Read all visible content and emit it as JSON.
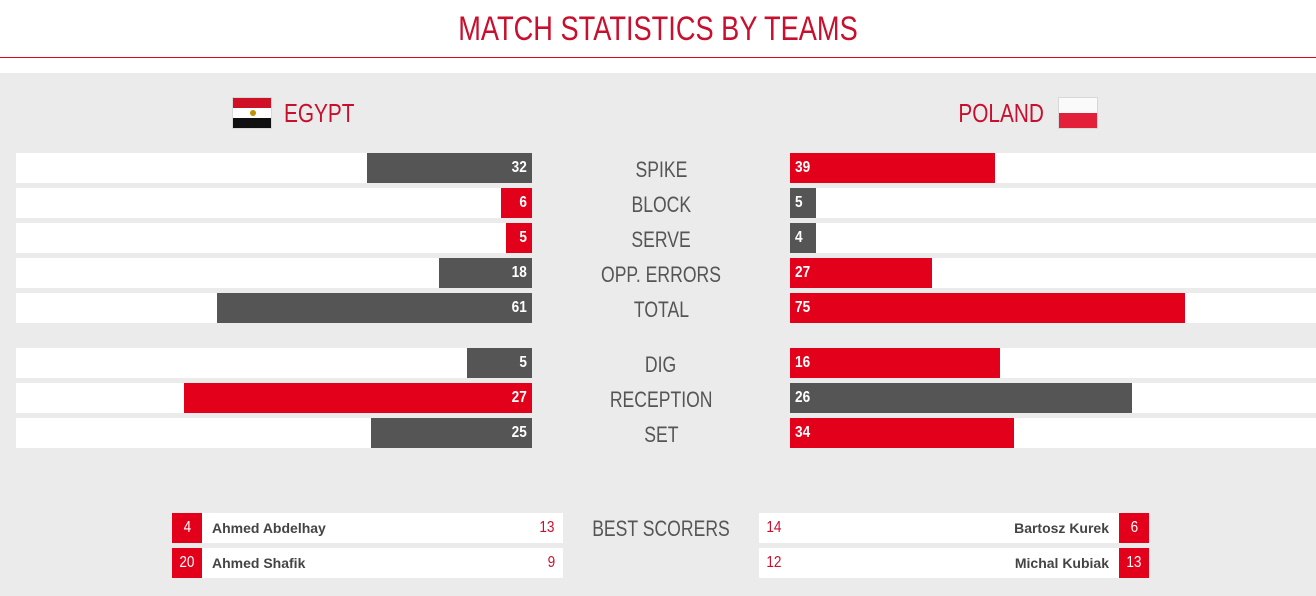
{
  "page": {
    "title": "MATCH STATISTICS BY TEAMS"
  },
  "teams": {
    "home": {
      "name": "EGYPT",
      "flag_icon": "egypt-flag-icon"
    },
    "away": {
      "name": "POLAND",
      "flag_icon": "poland-flag-icon"
    }
  },
  "colors": {
    "accent": "#e2001a",
    "dark": "#555555",
    "panel": "#ecebeb"
  },
  "stats": [
    {
      "label": "SPIKE",
      "home": "32",
      "away": "39",
      "home_value": 32,
      "away_value": 39,
      "max": 100
    },
    {
      "label": "BLOCK",
      "home": "6",
      "away": "5",
      "home_value": 6,
      "away_value": 5,
      "max": 100
    },
    {
      "label": "SERVE",
      "home": "5",
      "away": "4",
      "home_value": 5,
      "away_value": 4,
      "max": 100
    },
    {
      "label": "OPP. ERRORS",
      "home": "18",
      "away": "27",
      "home_value": 18,
      "away_value": 27,
      "max": 100
    },
    {
      "label": "TOTAL",
      "home": "61",
      "away": "75",
      "home_value": 61,
      "away_value": 75,
      "max": 100
    },
    {
      "label": "DIG",
      "home": "5",
      "away": "16",
      "home_value": 5,
      "away_value": 16,
      "max": 40
    },
    {
      "label": "RECEPTION",
      "home": "27",
      "away": "26",
      "home_value": 27,
      "away_value": 26,
      "max": 40
    },
    {
      "label": "SET",
      "home": "25",
      "away": "34",
      "home_value": 25,
      "away_value": 34,
      "max": 80
    }
  ],
  "best_scorers": {
    "label": "BEST SCORERS",
    "home": [
      {
        "number": "4",
        "name": "Ahmed Abdelhay",
        "points": "13"
      },
      {
        "number": "20",
        "name": "Ahmed Shafik",
        "points": "9"
      }
    ],
    "away": [
      {
        "number": "6",
        "name": "Bartosz Kurek",
        "points": "14"
      },
      {
        "number": "13",
        "name": "Michal Kubiak",
        "points": "12"
      }
    ]
  }
}
